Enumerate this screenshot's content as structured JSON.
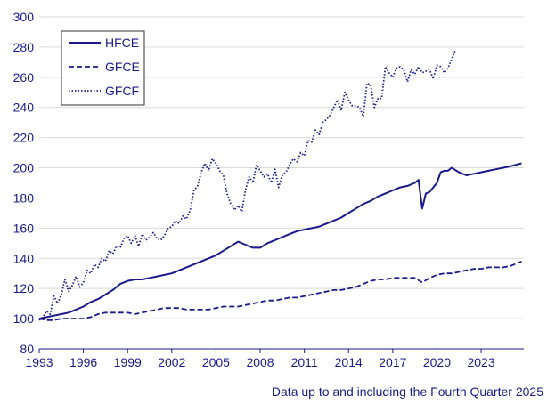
{
  "note": "Data up to and including the Fourth Quarter 2025",
  "colors": {
    "series": "#1a1a8c",
    "axis": "#1a1a8c",
    "grid": "#d9d9d9"
  },
  "chart_data": {
    "type": "line",
    "title": "",
    "xlabel": "",
    "ylabel": "",
    "xlim": [
      1993.0,
      2025.9
    ],
    "ylim": [
      80,
      300
    ],
    "yticks": [
      80,
      100,
      120,
      140,
      160,
      180,
      200,
      220,
      240,
      260,
      280,
      300
    ],
    "xticks": [
      1993,
      1996,
      1999,
      2002,
      2005,
      2008,
      2011,
      2014,
      2017,
      2020,
      2023
    ],
    "xtick_labels": [
      "1993",
      "1996",
      "1999",
      "2002",
      "2005",
      "2008",
      "2011",
      "2014",
      "2017",
      "2020",
      "2023"
    ],
    "grid": "horizontal",
    "legend_position": "top-left",
    "series": [
      {
        "name": "HFCE",
        "style": "solid",
        "points": [
          [
            1993.0,
            100
          ],
          [
            1993.5,
            101
          ],
          [
            1994.0,
            102
          ],
          [
            1994.5,
            103
          ],
          [
            1995.0,
            104
          ],
          [
            1995.5,
            106
          ],
          [
            1996.0,
            108
          ],
          [
            1996.5,
            111
          ],
          [
            1997.0,
            113
          ],
          [
            1997.5,
            116
          ],
          [
            1998.0,
            119
          ],
          [
            1998.5,
            123
          ],
          [
            1999.0,
            125
          ],
          [
            1999.5,
            126
          ],
          [
            2000.0,
            126
          ],
          [
            2000.5,
            127
          ],
          [
            2001.0,
            128
          ],
          [
            2001.5,
            129
          ],
          [
            2002.0,
            130
          ],
          [
            2002.5,
            132
          ],
          [
            2003.0,
            134
          ],
          [
            2003.5,
            136
          ],
          [
            2004.0,
            138
          ],
          [
            2004.5,
            140
          ],
          [
            2005.0,
            142
          ],
          [
            2005.5,
            145
          ],
          [
            2006.0,
            148
          ],
          [
            2006.5,
            151
          ],
          [
            2007.0,
            149
          ],
          [
            2007.5,
            147
          ],
          [
            2008.0,
            147
          ],
          [
            2008.5,
            150
          ],
          [
            2009.0,
            152
          ],
          [
            2009.5,
            154
          ],
          [
            2010.0,
            156
          ],
          [
            2010.5,
            158
          ],
          [
            2011.0,
            159
          ],
          [
            2011.5,
            160
          ],
          [
            2012.0,
            161
          ],
          [
            2012.5,
            163
          ],
          [
            2013.0,
            165
          ],
          [
            2013.5,
            167
          ],
          [
            2014.0,
            170
          ],
          [
            2014.5,
            173
          ],
          [
            2015.0,
            176
          ],
          [
            2015.5,
            178
          ],
          [
            2016.0,
            181
          ],
          [
            2016.5,
            183
          ],
          [
            2017.0,
            185
          ],
          [
            2017.5,
            187
          ],
          [
            2018.0,
            188
          ],
          [
            2018.5,
            190
          ],
          [
            2018.75,
            192
          ],
          [
            2019.0,
            173
          ],
          [
            2019.25,
            183
          ],
          [
            2019.5,
            184
          ],
          [
            2020.0,
            190
          ],
          [
            2020.25,
            197
          ],
          [
            2020.5,
            198
          ],
          [
            2020.75,
            198
          ],
          [
            2021.0,
            200
          ],
          [
            2021.5,
            197
          ],
          [
            2022.0,
            195
          ],
          [
            2022.5,
            196
          ],
          [
            2023.0,
            197
          ],
          [
            2023.5,
            198
          ],
          [
            2024.0,
            199
          ],
          [
            2024.5,
            200
          ],
          [
            2025.0,
            201
          ],
          [
            2025.75,
            203
          ]
        ]
      },
      {
        "name": "GFCE",
        "style": "dashed",
        "points": [
          [
            1993.0,
            100
          ],
          [
            1993.5,
            99
          ],
          [
            1994.0,
            99
          ],
          [
            1994.5,
            100
          ],
          [
            1995.0,
            100
          ],
          [
            1995.5,
            100
          ],
          [
            1996.0,
            100
          ],
          [
            1996.5,
            101
          ],
          [
            1997.0,
            103
          ],
          [
            1997.5,
            104
          ],
          [
            1998.0,
            104
          ],
          [
            1998.5,
            104
          ],
          [
            1999.0,
            104
          ],
          [
            1999.5,
            103
          ],
          [
            2000.0,
            104
          ],
          [
            2000.5,
            105
          ],
          [
            2001.0,
            106
          ],
          [
            2001.5,
            107
          ],
          [
            2002.0,
            107
          ],
          [
            2002.5,
            107
          ],
          [
            2003.0,
            106
          ],
          [
            2003.5,
            106
          ],
          [
            2004.0,
            106
          ],
          [
            2004.5,
            106
          ],
          [
            2005.0,
            107
          ],
          [
            2005.5,
            108
          ],
          [
            2006.0,
            108
          ],
          [
            2006.5,
            108
          ],
          [
            2007.0,
            109
          ],
          [
            2007.5,
            110
          ],
          [
            2008.0,
            111
          ],
          [
            2008.5,
            112
          ],
          [
            2009.0,
            112
          ],
          [
            2009.5,
            113
          ],
          [
            2010.0,
            114
          ],
          [
            2010.5,
            114
          ],
          [
            2011.0,
            115
          ],
          [
            2011.5,
            116
          ],
          [
            2012.0,
            117
          ],
          [
            2012.5,
            118
          ],
          [
            2013.0,
            119
          ],
          [
            2013.5,
            119
          ],
          [
            2014.0,
            120
          ],
          [
            2014.5,
            121
          ],
          [
            2015.0,
            123
          ],
          [
            2015.5,
            125
          ],
          [
            2016.0,
            126
          ],
          [
            2016.5,
            126
          ],
          [
            2017.0,
            127
          ],
          [
            2017.5,
            127
          ],
          [
            2018.0,
            127
          ],
          [
            2018.5,
            127
          ],
          [
            2019.0,
            124
          ],
          [
            2019.5,
            127
          ],
          [
            2020.0,
            129
          ],
          [
            2020.5,
            130
          ],
          [
            2021.0,
            130
          ],
          [
            2021.5,
            131
          ],
          [
            2022.0,
            132
          ],
          [
            2022.5,
            133
          ],
          [
            2023.0,
            133
          ],
          [
            2023.5,
            134
          ],
          [
            2024.0,
            134
          ],
          [
            2024.5,
            134
          ],
          [
            2025.0,
            135
          ],
          [
            2025.75,
            138
          ]
        ]
      },
      {
        "name": "GFCF",
        "style": "dotted",
        "points": [
          [
            1993.0,
            99
          ],
          [
            1993.25,
            101
          ],
          [
            1993.5,
            105
          ],
          [
            1993.75,
            103
          ],
          [
            1994.0,
            115
          ],
          [
            1994.25,
            110
          ],
          [
            1994.5,
            116
          ],
          [
            1994.75,
            126
          ],
          [
            1995.0,
            118
          ],
          [
            1995.25,
            122
          ],
          [
            1995.5,
            128
          ],
          [
            1995.75,
            121
          ],
          [
            1996.0,
            124
          ],
          [
            1996.25,
            132
          ],
          [
            1996.5,
            130
          ],
          [
            1996.75,
            136
          ],
          [
            1997.0,
            134
          ],
          [
            1997.25,
            140
          ],
          [
            1997.5,
            138
          ],
          [
            1997.75,
            145
          ],
          [
            1998.0,
            143
          ],
          [
            1998.25,
            148
          ],
          [
            1998.5,
            147
          ],
          [
            1998.75,
            153
          ],
          [
            1999.0,
            155
          ],
          [
            1999.25,
            150
          ],
          [
            1999.5,
            155
          ],
          [
            1999.75,
            148
          ],
          [
            2000.0,
            156
          ],
          [
            2000.25,
            152
          ],
          [
            2000.5,
            154
          ],
          [
            2000.75,
            157
          ],
          [
            2001.0,
            153
          ],
          [
            2001.25,
            152
          ],
          [
            2001.5,
            155
          ],
          [
            2001.75,
            160
          ],
          [
            2002.0,
            161
          ],
          [
            2002.25,
            165
          ],
          [
            2002.5,
            163
          ],
          [
            2002.75,
            168
          ],
          [
            2003.0,
            166
          ],
          [
            2003.25,
            172
          ],
          [
            2003.5,
            185
          ],
          [
            2003.75,
            188
          ],
          [
            2004.0,
            197
          ],
          [
            2004.25,
            203
          ],
          [
            2004.5,
            198
          ],
          [
            2004.75,
            206
          ],
          [
            2005.0,
            203
          ],
          [
            2005.25,
            198
          ],
          [
            2005.5,
            195
          ],
          [
            2005.75,
            183
          ],
          [
            2006.0,
            176
          ],
          [
            2006.25,
            172
          ],
          [
            2006.5,
            175
          ],
          [
            2006.75,
            171
          ],
          [
            2007.0,
            185
          ],
          [
            2007.25,
            194
          ],
          [
            2007.5,
            190
          ],
          [
            2007.75,
            202
          ],
          [
            2008.0,
            198
          ],
          [
            2008.25,
            194
          ],
          [
            2008.5,
            196
          ],
          [
            2008.75,
            190
          ],
          [
            2009.0,
            199
          ],
          [
            2009.25,
            187
          ],
          [
            2009.5,
            195
          ],
          [
            2009.75,
            197
          ],
          [
            2010.0,
            202
          ],
          [
            2010.25,
            206
          ],
          [
            2010.5,
            204
          ],
          [
            2010.75,
            210
          ],
          [
            2011.0,
            208
          ],
          [
            2011.25,
            218
          ],
          [
            2011.5,
            217
          ],
          [
            2011.75,
            225
          ],
          [
            2012.0,
            222
          ],
          [
            2012.25,
            230
          ],
          [
            2012.5,
            232
          ],
          [
            2012.75,
            235
          ],
          [
            2013.0,
            240
          ],
          [
            2013.25,
            245
          ],
          [
            2013.5,
            238
          ],
          [
            2013.75,
            250
          ],
          [
            2014.0,
            245
          ],
          [
            2014.25,
            241
          ],
          [
            2014.5,
            241
          ],
          [
            2014.75,
            240
          ],
          [
            2015.0,
            234
          ],
          [
            2015.25,
            256
          ],
          [
            2015.5,
            255
          ],
          [
            2015.75,
            240
          ],
          [
            2016.0,
            246
          ],
          [
            2016.25,
            246
          ],
          [
            2016.5,
            267
          ],
          [
            2016.75,
            263
          ],
          [
            2017.0,
            260
          ],
          [
            2017.25,
            266
          ],
          [
            2017.5,
            267
          ],
          [
            2017.75,
            265
          ],
          [
            2018.0,
            257
          ],
          [
            2018.25,
            265
          ],
          [
            2018.5,
            262
          ],
          [
            2018.75,
            267
          ],
          [
            2019.0,
            263
          ],
          [
            2019.25,
            264
          ],
          [
            2019.5,
            265
          ],
          [
            2019.75,
            259
          ],
          [
            2020.0,
            268
          ],
          [
            2020.25,
            267
          ],
          [
            2020.5,
            263
          ],
          [
            2020.75,
            266
          ],
          [
            2021.0,
            272
          ],
          [
            2021.25,
            278
          ]
        ]
      }
    ]
  }
}
